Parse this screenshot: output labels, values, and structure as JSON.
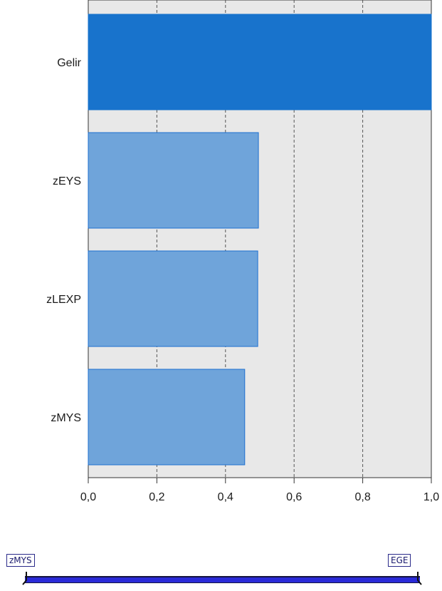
{
  "chart_data": {
    "type": "bar",
    "orientation": "horizontal",
    "categories": [
      "Gelir",
      "zEYS",
      "zLEXP",
      "zMYS"
    ],
    "values": [
      1.0,
      0.496,
      0.494,
      0.456
    ],
    "xlim": [
      0,
      1
    ],
    "xticks": [
      "0,0",
      "0,2",
      "0,4",
      "0,6",
      "0,8",
      "1,0"
    ],
    "grid": "vertical dashed",
    "highlighted_category": "Gelir",
    "colors": {
      "highlight": "#1873cc",
      "bar": "#6fa4da",
      "bar_border": "#1e6fd0",
      "plot_bg": "#e8e8e8"
    }
  },
  "range_slider": {
    "start_label": "zMYS",
    "end_label": "EGE"
  }
}
